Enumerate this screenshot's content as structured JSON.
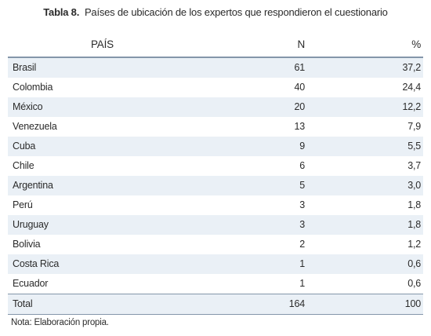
{
  "caption": {
    "label": "Tabla 8.",
    "text": "Países de ubicación de los expertos que respondieron el cuestionario"
  },
  "table": {
    "headers": {
      "country": "PAÍS",
      "n": "N",
      "pct": "%"
    },
    "rows": [
      {
        "country": "Brasil",
        "n": "61",
        "pct": "37,2"
      },
      {
        "country": "Colombia",
        "n": "40",
        "pct": "24,4"
      },
      {
        "country": "México",
        "n": "20",
        "pct": "12,2"
      },
      {
        "country": "Venezuela",
        "n": "13",
        "pct": "7,9"
      },
      {
        "country": "Cuba",
        "n": "9",
        "pct": "5,5"
      },
      {
        "country": "Chile",
        "n": "6",
        "pct": "3,7"
      },
      {
        "country": "Argentina",
        "n": "5",
        "pct": "3,0"
      },
      {
        "country": "Perú",
        "n": "3",
        "pct": "1,8"
      },
      {
        "country": "Uruguay",
        "n": "3",
        "pct": "1,8"
      },
      {
        "country": "Bolivia",
        "n": "2",
        "pct": "1,2"
      },
      {
        "country": "Costa Rica",
        "n": "1",
        "pct": "0,6"
      },
      {
        "country": "Ecuador",
        "n": "1",
        "pct": "0,6"
      }
    ],
    "total": {
      "country": "Total",
      "n": "164",
      "pct": "100"
    }
  },
  "note": "Nota: Elaboración propia.",
  "colors": {
    "stripe": "#eaf0f6",
    "rule": "#8496aa",
    "text": "#2b2b2b"
  }
}
